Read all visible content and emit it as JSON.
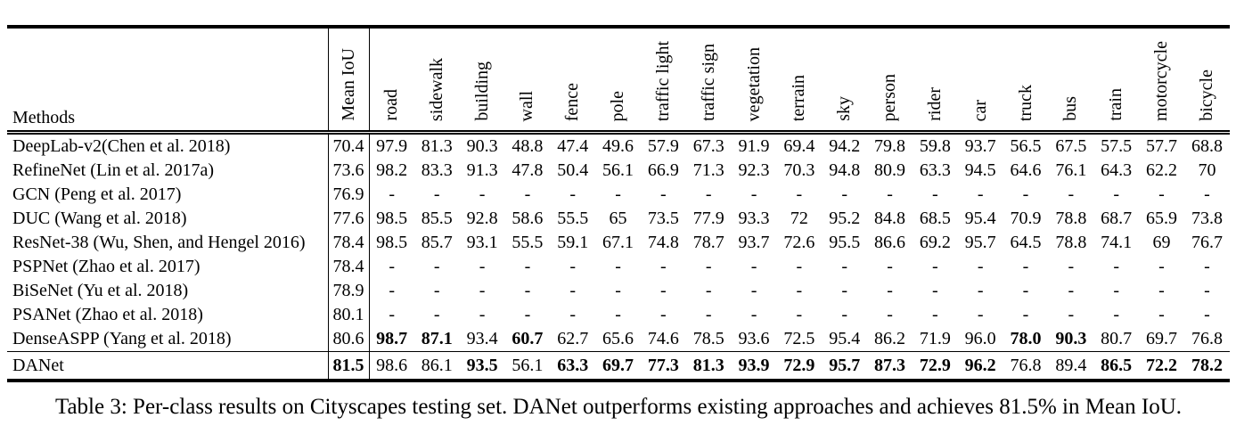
{
  "table": {
    "methods_header": "Methods",
    "mean_iou_header": "Mean IoU",
    "class_headers": [
      "road",
      "sidewalk",
      "building",
      "wall",
      "fence",
      "pole",
      "traffic light",
      "traffic sign",
      "vegetation",
      "terrain",
      "sky",
      "person",
      "rider",
      "car",
      "truck",
      "bus",
      "train",
      "motorcycle",
      "bicycle"
    ],
    "rows": [
      {
        "method": "DeepLab-v2(Chen et al. 2018)",
        "mean_iou": "70.4",
        "mean_bold": false,
        "values": [
          "97.9",
          "81.3",
          "90.3",
          "48.8",
          "47.4",
          "49.6",
          "57.9",
          "67.3",
          "91.9",
          "69.4",
          "94.2",
          "79.8",
          "59.8",
          "93.7",
          "56.5",
          "67.5",
          "57.5",
          "57.7",
          "68.8"
        ],
        "bold": []
      },
      {
        "method": "RefineNet (Lin et al. 2017a)",
        "mean_iou": "73.6",
        "mean_bold": false,
        "values": [
          "98.2",
          "83.3",
          "91.3",
          "47.8",
          "50.4",
          "56.1",
          "66.9",
          "71.3",
          "92.3",
          "70.3",
          "94.8",
          "80.9",
          "63.3",
          "94.5",
          "64.6",
          "76.1",
          "64.3",
          "62.2",
          "70"
        ],
        "bold": []
      },
      {
        "method": "GCN (Peng et al. 2017)",
        "mean_iou": "76.9",
        "mean_bold": false,
        "values": [
          "-",
          "-",
          "-",
          "-",
          "-",
          "-",
          "-",
          "-",
          "-",
          "-",
          "-",
          "-",
          "-",
          "-",
          "-",
          "-",
          "-",
          "-",
          "-"
        ],
        "bold": []
      },
      {
        "method": "DUC (Wang et al. 2018)",
        "mean_iou": "77.6",
        "mean_bold": false,
        "values": [
          "98.5",
          "85.5",
          "92.8",
          "58.6",
          "55.5",
          "65",
          "73.5",
          "77.9",
          "93.3",
          "72",
          "95.2",
          "84.8",
          "68.5",
          "95.4",
          "70.9",
          "78.8",
          "68.7",
          "65.9",
          "73.8"
        ],
        "bold": []
      },
      {
        "method": "ResNet-38 (Wu, Shen, and Hengel 2016)",
        "mean_iou": "78.4",
        "mean_bold": false,
        "values": [
          "98.5",
          "85.7",
          "93.1",
          "55.5",
          "59.1",
          "67.1",
          "74.8",
          "78.7",
          "93.7",
          "72.6",
          "95.5",
          "86.6",
          "69.2",
          "95.7",
          "64.5",
          "78.8",
          "74.1",
          "69",
          "76.7"
        ],
        "bold": []
      },
      {
        "method": "PSPNet (Zhao et al. 2017)",
        "mean_iou": "78.4",
        "mean_bold": false,
        "values": [
          "-",
          "-",
          "-",
          "-",
          "-",
          "-",
          "-",
          "-",
          "-",
          "-",
          "-",
          "-",
          "-",
          "-",
          "-",
          "-",
          "-",
          "-",
          "-"
        ],
        "bold": []
      },
      {
        "method": "BiSeNet (Yu et al. 2018)",
        "mean_iou": "78.9",
        "mean_bold": false,
        "values": [
          "-",
          "-",
          "-",
          "-",
          "-",
          "-",
          "-",
          "-",
          "-",
          "-",
          "-",
          "-",
          "-",
          "-",
          "-",
          "-",
          "-",
          "-",
          "-"
        ],
        "bold": []
      },
      {
        "method": "PSANet (Zhao et al. 2018)",
        "mean_iou": "80.1",
        "mean_bold": false,
        "values": [
          "-",
          "-",
          "-",
          "-",
          "-",
          "-",
          "-",
          "-",
          "-",
          "-",
          "-",
          "-",
          "-",
          "-",
          "-",
          "-",
          "-",
          "-",
          "-"
        ],
        "bold": []
      },
      {
        "method": "DenseASPP (Yang et al. 2018)",
        "mean_iou": "80.6",
        "mean_bold": false,
        "values": [
          "98.7",
          "87.1",
          "93.4",
          "60.7",
          "62.7",
          "65.6",
          "74.6",
          "78.5",
          "93.6",
          "72.5",
          "95.4",
          "86.2",
          "71.9",
          "96.0",
          "78.0",
          "90.3",
          "80.7",
          "69.7",
          "76.8"
        ],
        "bold": [
          0,
          1,
          3,
          14,
          15
        ]
      },
      {
        "method": "DANet",
        "mean_iou": "81.5",
        "mean_bold": true,
        "values": [
          "98.6",
          "86.1",
          "93.5",
          "56.1",
          "63.3",
          "69.7",
          "77.3",
          "81.3",
          "93.9",
          "72.9",
          "95.7",
          "87.3",
          "72.9",
          "96.2",
          "76.8",
          "89.4",
          "86.5",
          "72.2",
          "78.2"
        ],
        "bold": [
          2,
          4,
          5,
          6,
          7,
          8,
          9,
          10,
          11,
          12,
          13,
          16,
          17,
          18
        ]
      }
    ]
  },
  "caption": "Table 3: Per-class results on Cityscapes testing set. DANet outperforms existing approaches and achieves 81.5% in Mean IoU."
}
